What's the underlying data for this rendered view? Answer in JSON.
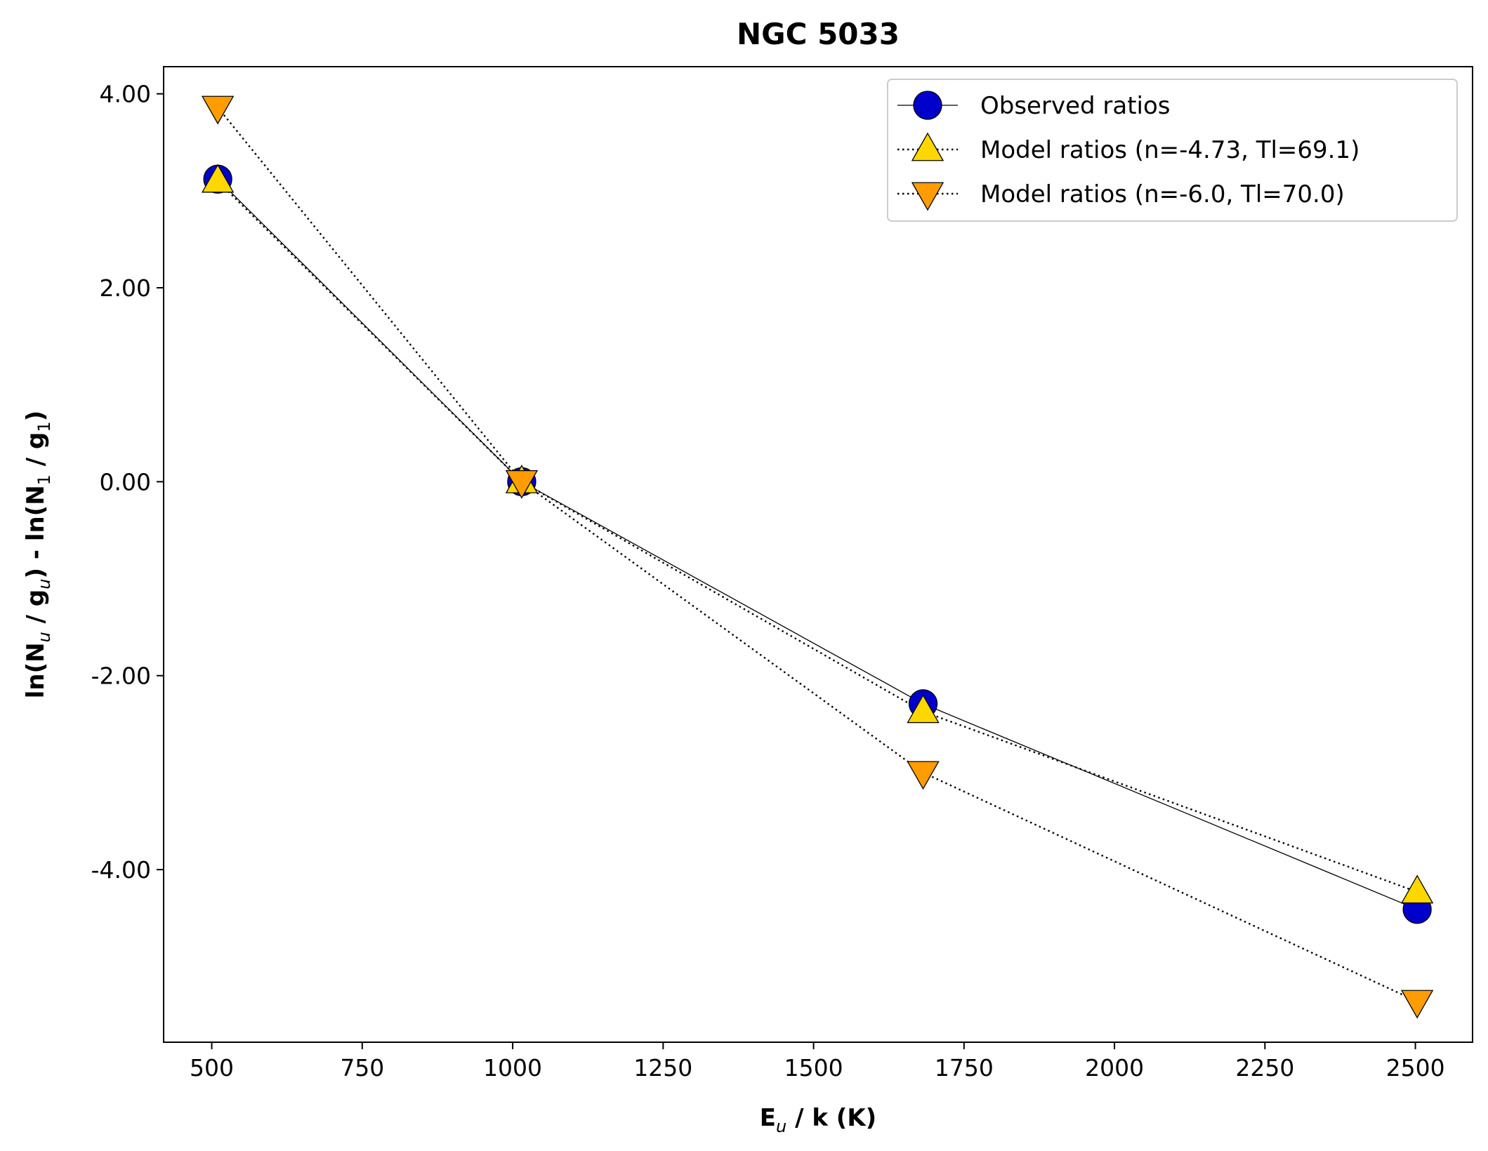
{
  "chart_data": {
    "type": "line",
    "title": "NGC 5033",
    "xlabel": {
      "main": "E",
      "sub": "u",
      "rest": " / k (K)"
    },
    "ylabel": {
      "p1": "ln(N",
      "s1": "u",
      "p2": " / g",
      "s2": "u",
      "p3": ") - ln(N",
      "s3": "1",
      "p4": " / g",
      "s4": "1",
      "p5": ")"
    },
    "xlim": [
      420,
      2595
    ],
    "ylim": [
      -5.78,
      4.28
    ],
    "xticks": [
      500,
      750,
      1000,
      1250,
      1500,
      1750,
      2000,
      2250,
      2500
    ],
    "xtick_labels": [
      "500",
      "750",
      "1000",
      "1250",
      "1500",
      "1750",
      "2000",
      "2250",
      "2500"
    ],
    "yticks": [
      4,
      2,
      0,
      -2,
      -4
    ],
    "ytick_labels": [
      "4.00",
      "2.00",
      "0.00",
      "-2.00",
      "-4.00"
    ],
    "grid": false,
    "legend_position": "top-right",
    "series": [
      {
        "name": "Observed ratios",
        "x": [
          510,
          1015,
          1682,
          2503
        ],
        "y": [
          3.12,
          0.0,
          -2.29,
          -4.41
        ],
        "line_style": "solid",
        "marker": "circle",
        "color": "#0000cc"
      },
      {
        "name": "Model ratios (n=-4.73, Tl=69.1)",
        "x": [
          510,
          1015,
          1682,
          2503
        ],
        "y": [
          3.1,
          0.0,
          -2.37,
          -4.23
        ],
        "line_style": "dotted",
        "marker": "triangle-up",
        "color": "#ffd700"
      },
      {
        "name": "Model ratios (n=-6.0, Tl=70.0)",
        "x": [
          510,
          1015,
          1682,
          2503
        ],
        "y": [
          3.86,
          0.0,
          -3.0,
          -5.36
        ],
        "line_style": "dotted",
        "marker": "triangle-down",
        "color": "#ff9d00"
      }
    ]
  }
}
